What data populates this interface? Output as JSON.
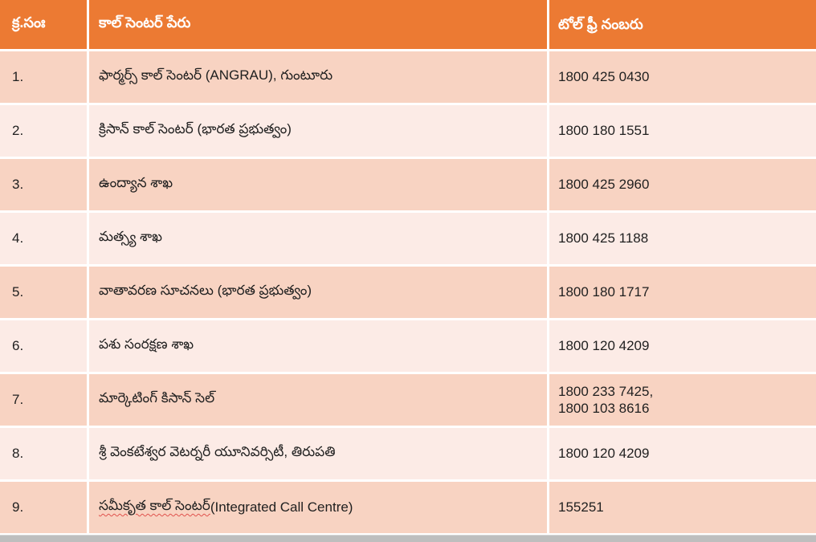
{
  "colors": {
    "header_bg": "#EC7A33",
    "header_text": "#FFFFFF",
    "band_dark": "#F8D3C2",
    "band_light": "#FCEBE6",
    "cell_text": "#1F1F1F",
    "grid_lines": "#FFFFFF",
    "spellcheck_underline": "#E0524D",
    "bottom_bar": "#BEBEBE"
  },
  "table": {
    "headers": {
      "sno": "క్ర.సంః",
      "name": "కాల్ సెంటర్ పేరు",
      "number": "టోల్ ఫ్రీ నంబరు"
    },
    "rows": [
      {
        "sno": "1.",
        "name": "ఫార్మర్స్ కాల్ సెంటర్ (ANGRAU), గుంటూరు",
        "number": "1800 425 0430"
      },
      {
        "sno": "2.",
        "name": "క్రిసాన్ కాల్ సెంటర్ (భారత ప్రభుత్వం)",
        "number": "1800 180 1551"
      },
      {
        "sno": "3.",
        "name": "ఉంద్యాన శాఖ",
        "number": "1800 425 2960"
      },
      {
        "sno": "4.",
        "name": "మత్స్య శాఖ",
        "number": "1800 425 1188"
      },
      {
        "sno": "5.",
        "name": "వాతావరణ సూచనలు (భారత ప్రభుత్వం)",
        "number": "1800 180 1717"
      },
      {
        "sno": "6.",
        "name": "పశు సంరక్షణ శాఖ",
        "number": "1800 120 4209"
      },
      {
        "sno": "7.",
        "name": "మార్కెటింగ్ కిసాన్ సెల్",
        "number": "1800 233 7425,\n1800 103 8616"
      },
      {
        "sno": "8.",
        "name": "శ్రీ వెంకటేశ్వర వెటర్నరీ యూనివర్సిటీ, తిరుపతి",
        "number": "1800 120 4209"
      },
      {
        "sno": "9.",
        "name": "సమీకృత కాల్ సెంటర్",
        "name_suffix": " (Integrated Call Centre)",
        "number": "155251"
      }
    ]
  }
}
